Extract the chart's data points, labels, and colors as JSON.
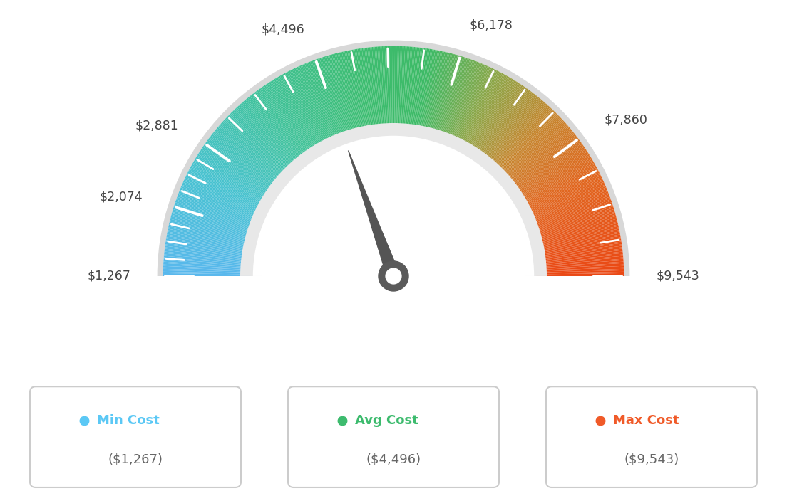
{
  "min_val": 1267,
  "max_val": 9543,
  "avg_val": 4496,
  "tick_labels": [
    "$1,267",
    "$2,074",
    "$2,881",
    "$4,496",
    "$6,178",
    "$7,860",
    "$9,543"
  ],
  "tick_values": [
    1267,
    2074,
    2881,
    4496,
    6178,
    7860,
    9543
  ],
  "min_cost_label": "Min Cost",
  "avg_cost_label": "Avg Cost",
  "max_cost_label": "Max Cost",
  "min_cost_val": "($1,267)",
  "avg_cost_val": "($4,496)",
  "max_cost_val": "($9,543)",
  "min_color": "#5bc8f5",
  "avg_color": "#3dbb6e",
  "max_color": "#f05a28",
  "bg_color": "#ffffff",
  "color_stops": [
    [
      0.0,
      [
        0.35,
        0.72,
        0.93
      ]
    ],
    [
      0.15,
      [
        0.28,
        0.76,
        0.82
      ]
    ],
    [
      0.3,
      [
        0.25,
        0.76,
        0.6
      ]
    ],
    [
      0.45,
      [
        0.24,
        0.74,
        0.44
      ]
    ],
    [
      0.55,
      [
        0.24,
        0.73,
        0.4
      ]
    ],
    [
      0.65,
      [
        0.55,
        0.65,
        0.28
      ]
    ],
    [
      0.75,
      [
        0.78,
        0.52,
        0.18
      ]
    ],
    [
      0.85,
      [
        0.88,
        0.4,
        0.12
      ]
    ],
    [
      1.0,
      [
        0.92,
        0.28,
        0.08
      ]
    ]
  ],
  "outer_r": 1.0,
  "inner_r": 0.62,
  "needle_color": "#555555",
  "hub_outer_color": "#666666",
  "hub_inner_color": "#ffffff",
  "border_outer_color": "#cccccc",
  "border_inner_color": "#e0e0e0"
}
